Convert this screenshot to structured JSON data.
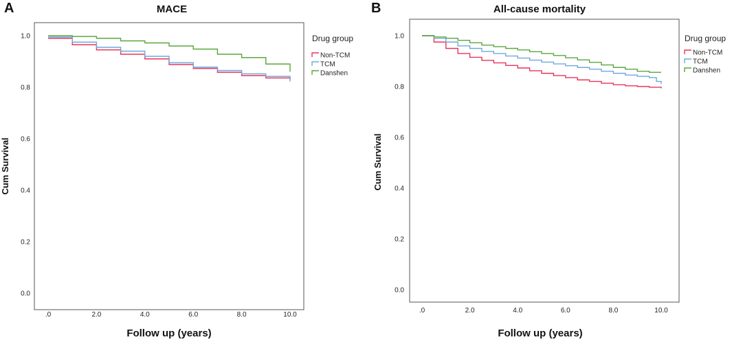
{
  "chart_data": [
    {
      "panel": "A",
      "type": "line",
      "title": "MACE",
      "xlabel": "Follow up (years)",
      "ylabel": "Cum Survival",
      "xlim": [
        0,
        10
      ],
      "ylim": [
        0,
        1
      ],
      "xticks": [
        ".0",
        "2.0",
        "4.0",
        "6.0",
        "8.0",
        "10.0"
      ],
      "yticks": [
        "0.0",
        "0.2",
        "0.4",
        "0.6",
        "0.8",
        "1.0"
      ],
      "legend_title": "Drug group",
      "series": [
        {
          "name": "Non-TCM",
          "color": "#e8335a",
          "x": [
            0,
            1,
            2,
            3,
            4,
            5,
            6,
            7,
            8,
            9,
            10
          ],
          "y": [
            0.99,
            0.965,
            0.945,
            0.928,
            0.91,
            0.888,
            0.873,
            0.858,
            0.845,
            0.836,
            0.828
          ]
        },
        {
          "name": "TCM",
          "color": "#6fa8dc",
          "x": [
            0,
            1,
            2,
            3,
            4,
            5,
            6,
            7,
            8,
            9,
            10
          ],
          "y": [
            0.995,
            0.975,
            0.955,
            0.94,
            0.92,
            0.895,
            0.878,
            0.865,
            0.852,
            0.842,
            0.822
          ]
        },
        {
          "name": "Danshen",
          "color": "#5aa63c",
          "x": [
            0,
            1,
            2,
            3,
            4,
            5,
            6,
            7,
            8,
            9,
            10
          ],
          "y": [
            1.0,
            0.997,
            0.99,
            0.98,
            0.972,
            0.96,
            0.948,
            0.928,
            0.915,
            0.89,
            0.86
          ]
        }
      ]
    },
    {
      "panel": "B",
      "type": "line",
      "title": "All-cause mortality",
      "xlabel": "Follow up (years)",
      "ylabel": "Cum Survival",
      "xlim": [
        0,
        10
      ],
      "ylim": [
        0,
        1
      ],
      "xticks": [
        ".0",
        "2.0",
        "4.0",
        "6.0",
        "8.0",
        "10.0"
      ],
      "yticks": [
        "0.0",
        "0.2",
        "0.4",
        "0.6",
        "0.8",
        "1.0"
      ],
      "legend_title": "Drug group",
      "series": [
        {
          "name": "Non-TCM",
          "color": "#e8335a",
          "x": [
            0,
            0.5,
            1,
            1.5,
            2,
            2.5,
            3,
            3.5,
            4,
            4.5,
            5,
            5.5,
            6,
            6.5,
            7,
            7.5,
            8,
            8.5,
            9,
            9.5,
            10
          ],
          "y": [
            1.0,
            0.975,
            0.95,
            0.93,
            0.915,
            0.903,
            0.893,
            0.883,
            0.873,
            0.862,
            0.852,
            0.843,
            0.835,
            0.826,
            0.82,
            0.813,
            0.807,
            0.803,
            0.8,
            0.797,
            0.793
          ]
        },
        {
          "name": "TCM",
          "color": "#6fa8dc",
          "x": [
            0,
            0.5,
            1,
            1.5,
            2,
            2.5,
            3,
            3.5,
            4,
            4.5,
            5,
            5.5,
            6,
            6.5,
            7,
            7.5,
            8,
            8.5,
            9,
            9.5,
            9.8,
            10
          ],
          "y": [
            1.0,
            0.99,
            0.975,
            0.96,
            0.95,
            0.938,
            0.93,
            0.92,
            0.912,
            0.904,
            0.896,
            0.889,
            0.882,
            0.875,
            0.868,
            0.86,
            0.852,
            0.845,
            0.84,
            0.835,
            0.82,
            0.81
          ]
        },
        {
          "name": "Danshen",
          "color": "#5aa63c",
          "x": [
            0,
            0.5,
            1,
            1.5,
            2,
            2.5,
            3,
            3.5,
            4,
            4.5,
            5,
            5.5,
            6,
            6.5,
            7,
            7.5,
            8,
            8.5,
            9,
            9.5,
            10
          ],
          "y": [
            1.0,
            0.995,
            0.99,
            0.982,
            0.972,
            0.963,
            0.957,
            0.95,
            0.944,
            0.937,
            0.93,
            0.922,
            0.913,
            0.905,
            0.895,
            0.885,
            0.875,
            0.868,
            0.86,
            0.856,
            0.856
          ]
        }
      ]
    }
  ]
}
